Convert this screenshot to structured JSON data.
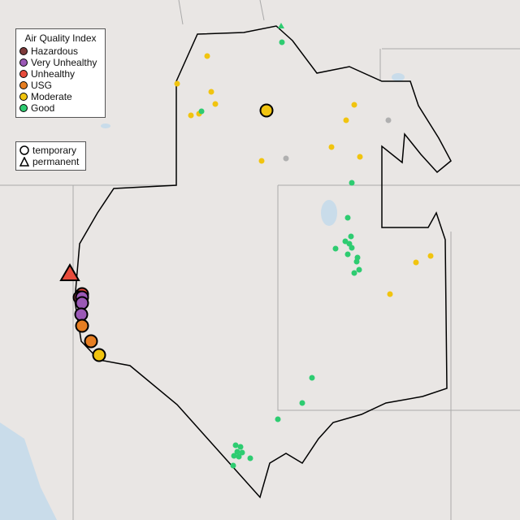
{
  "legend": {
    "title": "Air Quality Index",
    "categories": [
      {
        "label": "Hazardous",
        "color": "#7e3b3b"
      },
      {
        "label": "Very Unhealthy",
        "color": "#9b59b6"
      },
      {
        "label": "Unhealthy",
        "color": "#e74c3c"
      },
      {
        "label": "USG",
        "color": "#e67e22"
      },
      {
        "label": "Moderate",
        "color": "#f1c40f"
      },
      {
        "label": "Good",
        "color": "#2ecc71"
      }
    ],
    "types": [
      {
        "label": "temporary",
        "icon": "circle-icon"
      },
      {
        "label": "permanent",
        "icon": "triangle-icon"
      }
    ]
  },
  "colors": {
    "no_data": "#b0b0b0",
    "land": "#e9e6e4",
    "water": "#c9dcea",
    "boundary": "#000000",
    "state_line": "#aaaaaa"
  }
}
